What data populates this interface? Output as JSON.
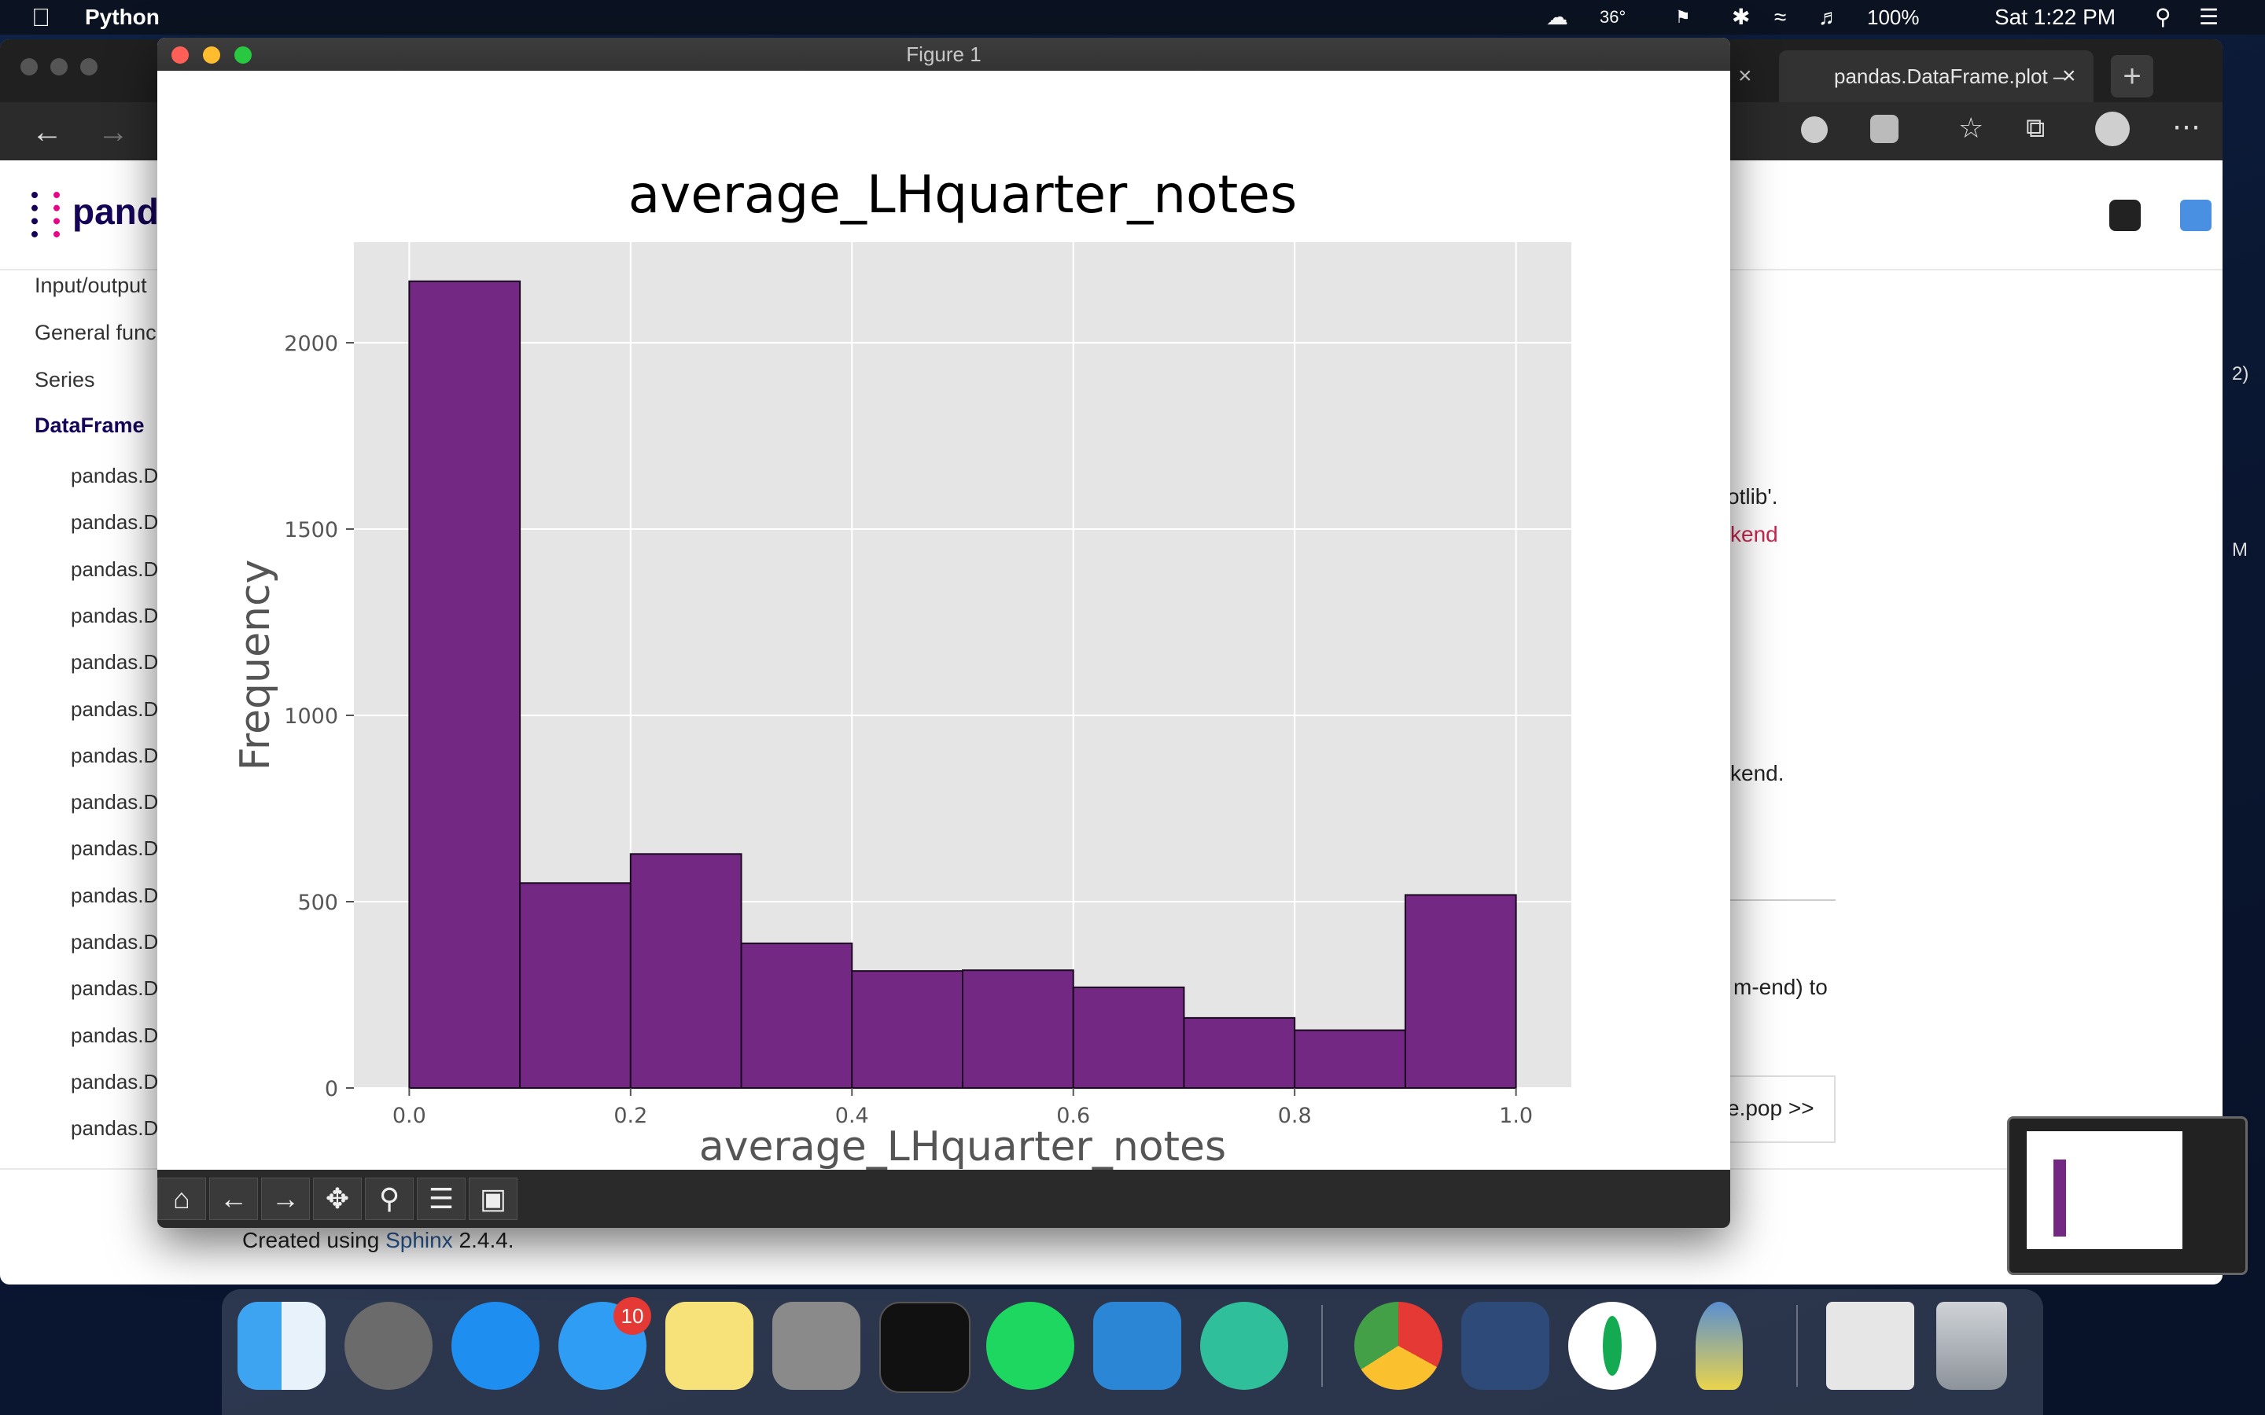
{
  "menubar": {
    "app_name": "Python",
    "weather": "36°",
    "battery": "100%",
    "clock": "Sat 1:22 PM"
  },
  "browser": {
    "tab_title": "pandas.DataFrame.plot –",
    "sidebar": [
      "Input/output",
      "General func",
      "Series",
      "DataFrame"
    ],
    "sidebar_sub": "pandas.D",
    "sidebar_sub_count": 15,
    "logo_text": "pand",
    "fragments": {
      "f1": "otlib'.",
      "f2": "kend",
      "f3": "kend.",
      "f4": "m-end) to",
      "f5": "e.pop >>",
      "f6": "2)",
      "f7": "M"
    },
    "footer_prefix": "Created using ",
    "footer_link": "Sphinx",
    "footer_version": " 2.4.4."
  },
  "figure": {
    "window_title": "Figure 1"
  },
  "chart_data": {
    "type": "bar",
    "title": "average_LHquarter_notes",
    "xlabel": "average_LHquarter_notes",
    "ylabel": "Frequency",
    "bin_edges": [
      0.0,
      0.1,
      0.2,
      0.3,
      0.4,
      0.5,
      0.6,
      0.7,
      0.8,
      0.9,
      1.0
    ],
    "values": [
      2165,
      550,
      628,
      388,
      314,
      316,
      270,
      188,
      155,
      518
    ],
    "xlim": [
      -0.05,
      1.05
    ],
    "ylim": [
      0,
      2270
    ],
    "xticks": [
      "0.0",
      "0.2",
      "0.4",
      "0.6",
      "0.8",
      "1.0"
    ],
    "xtick_values": [
      0.0,
      0.2,
      0.4,
      0.6,
      0.8,
      1.0
    ],
    "yticks": [
      "0",
      "500",
      "1000",
      "1500",
      "2000"
    ],
    "ytick_values": [
      0,
      500,
      1000,
      1500,
      2000
    ],
    "grid": true,
    "bar_color": "#732884",
    "plot_bg": "#e5e5e5"
  },
  "dock": {
    "messages_badge": "10"
  }
}
